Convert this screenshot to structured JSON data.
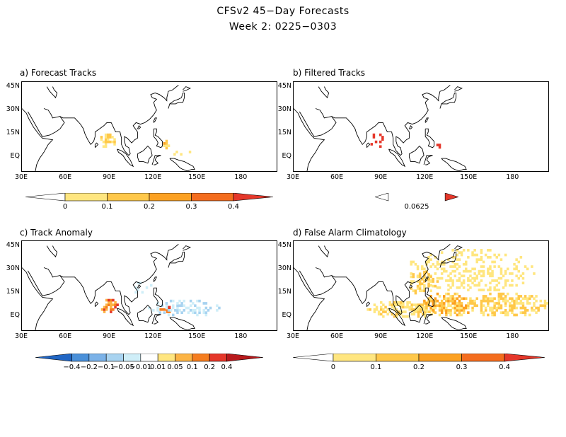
{
  "title": {
    "line1": "CFSv2 45−Day Forecasts",
    "line2": "Week 2: 0225−0303"
  },
  "panels": [
    {
      "id": "a",
      "label": "a) Forecast Tracks"
    },
    {
      "id": "b",
      "label": "b) Filtered Tracks"
    },
    {
      "id": "c",
      "label": "c) Track Anomaly"
    },
    {
      "id": "d",
      "label": "d) False Alarm Climatology"
    }
  ],
  "lat_labels": [
    "45N",
    "30N",
    "15N",
    "EQ"
  ],
  "lon_labels": [
    "30E",
    "60E",
    "90E",
    "120E",
    "150E",
    "180"
  ],
  "colorbars": {
    "a": {
      "labels": [
        "0",
        "0.1",
        "0.2",
        "0.3",
        "0.4"
      ],
      "colors": [
        "#ffffff",
        "#ffe680",
        "#ffc84a",
        "#fca122",
        "#f46d1e",
        "#e5372a"
      ]
    },
    "b": {
      "labels": [
        "0.0625"
      ],
      "colors": [
        "#ffffff",
        "#e5372a"
      ]
    },
    "c": {
      "labels": [
        "−0.4",
        "−0.2",
        "−0.1",
        "−0.05",
        "−0.01",
        "0.01",
        "0.05",
        "0.1",
        "0.2",
        "0.4"
      ],
      "colors": [
        "#2166c4",
        "#4a90d9",
        "#7bb2e8",
        "#a8d3f0",
        "#cfeef8",
        "#ffffff",
        "#ffe680",
        "#fcb445",
        "#f57d1f",
        "#e5372a",
        "#b8191c"
      ]
    },
    "d": {
      "labels": [
        "0",
        "0.1",
        "0.2",
        "0.3",
        "0.4"
      ],
      "colors": [
        "#ffffff",
        "#ffe680",
        "#ffc84a",
        "#fca122",
        "#f46d1e",
        "#e5372a"
      ]
    }
  }
}
